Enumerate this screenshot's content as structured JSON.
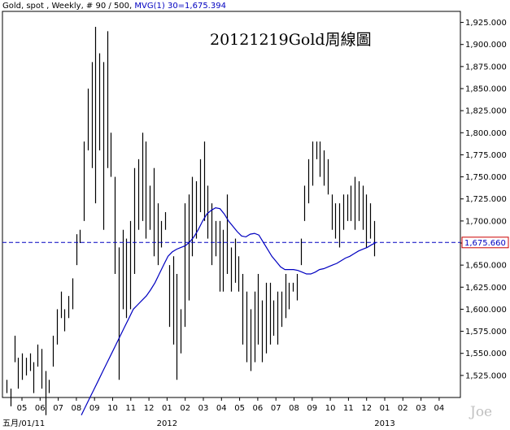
{
  "header": {
    "instrument": "Gold, spot , Weekly, # 90 / 500, ",
    "indicator": "MVG(1) 30=1,675.394"
  },
  "watermark": "Joe",
  "colors": {
    "price_bars": "#000000",
    "moving_average": "#0000c0",
    "reference_line": "#0000c0",
    "reference_label_border": "#cc0000"
  },
  "chart_data": {
    "type": "ohlc-bar",
    "title": "20121219Gold周線圖",
    "y_axis": {
      "position": "right",
      "min": 1500,
      "max": 1937.5,
      "ticks": [
        1525,
        1550,
        1575,
        1600,
        1625,
        1650,
        1675,
        1700,
        1725,
        1750,
        1775,
        1800,
        1825,
        1850,
        1875,
        1900,
        1925
      ],
      "tick_labels": [
        "1,525.000",
        "1,550.000",
        "1,575.000",
        "1,600.000",
        "1,625.000",
        "1,650.000",
        "1,675.000",
        "1,700.000",
        "1,725.000",
        "1,750.000",
        "1,775.000",
        "1,800.000",
        "1,825.000",
        "1,850.000",
        "1,875.000",
        "1,900.000",
        "1,925.000"
      ]
    },
    "x_axis": {
      "month_labels": [
        "05",
        "06",
        "07",
        "08",
        "09",
        "10",
        "11",
        "12",
        "01",
        "02",
        "03",
        "04",
        "05",
        "06",
        "07",
        "08",
        "09",
        "10",
        "11",
        "12",
        "01",
        "02",
        "03",
        "04"
      ],
      "year_labels": [
        {
          "text": "五月/01/11",
          "after_month_index": 0
        },
        {
          "text": "2012",
          "after_month_index": 8
        },
        {
          "text": "2013",
          "after_month_index": 20
        }
      ]
    },
    "reference_line": {
      "value": 1675.66,
      "label": "1,675.660"
    },
    "bars": [
      [
        1505,
        1520
      ],
      [
        1490,
        1510
      ],
      [
        1540,
        1570
      ],
      [
        1510,
        1545
      ],
      [
        1520,
        1550
      ],
      [
        1525,
        1545
      ],
      [
        1530,
        1550
      ],
      [
        1505,
        1540
      ],
      [
        1535,
        1560
      ],
      [
        1510,
        1555
      ],
      [
        1480,
        1530
      ],
      [
        1505,
        1520
      ],
      [
        1535,
        1570
      ],
      [
        1560,
        1600
      ],
      [
        1590,
        1620
      ],
      [
        1575,
        1600
      ],
      [
        1590,
        1615
      ],
      [
        1600,
        1635
      ],
      [
        1650,
        1685
      ],
      [
        1675,
        1690
      ],
      [
        1700,
        1790
      ],
      [
        1780,
        1850
      ],
      [
        1760,
        1880
      ],
      [
        1720,
        1920
      ],
      [
        1780,
        1890
      ],
      [
        1690,
        1880
      ],
      [
        1760,
        1915
      ],
      [
        1750,
        1800
      ],
      [
        1640,
        1750
      ],
      [
        1520,
        1670
      ],
      [
        1600,
        1690
      ],
      [
        1590,
        1680
      ],
      [
        1600,
        1700
      ],
      [
        1640,
        1760
      ],
      [
        1690,
        1770
      ],
      [
        1700,
        1800
      ],
      [
        1680,
        1790
      ],
      [
        1690,
        1740
      ],
      [
        1660,
        1760
      ],
      [
        1650,
        1720
      ],
      [
        1670,
        1700
      ],
      [
        1690,
        1710
      ],
      [
        1580,
        1650
      ],
      [
        1560,
        1660
      ],
      [
        1520,
        1640
      ],
      [
        1550,
        1600
      ],
      [
        1580,
        1720
      ],
      [
        1610,
        1730
      ],
      [
        1660,
        1750
      ],
      [
        1680,
        1745
      ],
      [
        1710,
        1770
      ],
      [
        1700,
        1790
      ],
      [
        1680,
        1740
      ],
      [
        1650,
        1720
      ],
      [
        1660,
        1700
      ],
      [
        1620,
        1700
      ],
      [
        1620,
        1690
      ],
      [
        1640,
        1730
      ],
      [
        1620,
        1670
      ],
      [
        1630,
        1680
      ],
      [
        1620,
        1660
      ],
      [
        1560,
        1640
      ],
      [
        1540,
        1620
      ],
      [
        1530,
        1600
      ],
      [
        1540,
        1620
      ],
      [
        1560,
        1640
      ],
      [
        1540,
        1610
      ],
      [
        1550,
        1630
      ],
      [
        1560,
        1630
      ],
      [
        1570,
        1610
      ],
      [
        1560,
        1620
      ],
      [
        1580,
        1620
      ],
      [
        1590,
        1640
      ],
      [
        1600,
        1630
      ],
      [
        1620,
        1630
      ],
      [
        1610,
        1640
      ],
      [
        1650,
        1680
      ],
      [
        1700,
        1740
      ],
      [
        1720,
        1770
      ],
      [
        1740,
        1790
      ],
      [
        1770,
        1790
      ],
      [
        1750,
        1790
      ],
      [
        1740,
        1780
      ],
      [
        1730,
        1770
      ],
      [
        1690,
        1730
      ],
      [
        1680,
        1720
      ],
      [
        1670,
        1720
      ],
      [
        1690,
        1730
      ],
      [
        1700,
        1730
      ],
      [
        1700,
        1740
      ],
      [
        1690,
        1750
      ],
      [
        1700,
        1745
      ],
      [
        1690,
        1740
      ],
      [
        1670,
        1730
      ],
      [
        1680,
        1720
      ],
      [
        1660,
        1700
      ]
    ],
    "moving_average": [
      1480,
      1490,
      1500,
      1510,
      1520,
      1530,
      1540,
      1550,
      1560,
      1570,
      1580,
      1590,
      1600,
      1605,
      1610,
      1615,
      1622,
      1630,
      1640,
      1650,
      1660,
      1665,
      1668,
      1670,
      1672,
      1676,
      1682,
      1690,
      1700,
      1708,
      1712,
      1715,
      1714,
      1708,
      1700,
      1694,
      1688,
      1683,
      1682,
      1685,
      1686,
      1684,
      1676,
      1668,
      1660,
      1654,
      1648,
      1645,
      1645,
      1645,
      1644,
      1642,
      1640,
      1640,
      1642,
      1645,
      1646,
      1648,
      1650,
      1652,
      1655,
      1658,
      1660,
      1663,
      1666,
      1668,
      1670,
      1673,
      1675.394
    ]
  }
}
